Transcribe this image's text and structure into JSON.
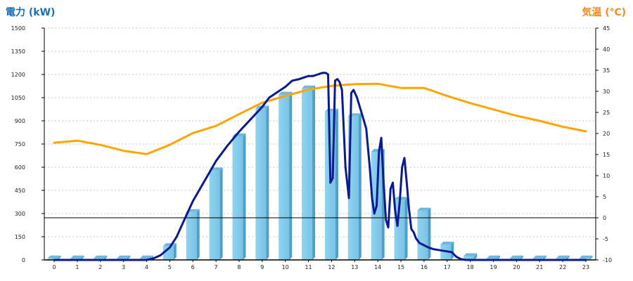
{
  "chart_data": {
    "type": "bar",
    "left_axis_title": "電力 (kW)",
    "right_axis_title": "気温 (℃)",
    "x": [
      0,
      1,
      2,
      3,
      4,
      5,
      6,
      7,
      8,
      9,
      10,
      11,
      12,
      13,
      14,
      15,
      16,
      17,
      18,
      19,
      20,
      21,
      22,
      23
    ],
    "y_left_range": [
      0,
      1500
    ],
    "y_left_ticks": [
      0,
      150,
      300,
      450,
      600,
      750,
      900,
      1050,
      1200,
      1350,
      1500
    ],
    "y_right_range": [
      -10,
      45
    ],
    "y_right_ticks": [
      -10,
      -5,
      0,
      5,
      10,
      15,
      20,
      25,
      30,
      35,
      40,
      45
    ],
    "bars": {
      "axis": "left",
      "color": "#87ceeb",
      "values": [
        10,
        10,
        10,
        10,
        10,
        90,
        310,
        580,
        800,
        980,
        1070,
        1110,
        960,
        930,
        700,
        390,
        320,
        100,
        25,
        10,
        10,
        10,
        10,
        10
      ]
    },
    "power_line": {
      "axis": "left",
      "color": "#0a1a8f",
      "x": [
        0,
        1,
        2,
        3,
        4,
        4.3,
        4.6,
        5,
        5.3,
        5.6,
        6,
        6.5,
        7,
        7.5,
        8,
        8.5,
        9,
        9.3,
        9.6,
        10,
        10.3,
        10.6,
        11,
        11.2,
        11.4,
        11.6,
        11.75,
        11.85,
        11.95,
        12.05,
        12.15,
        12.25,
        12.35,
        12.45,
        12.6,
        12.75,
        12.85,
        12.95,
        13.1,
        13.3,
        13.5,
        13.65,
        13.75,
        13.85,
        13.95,
        14.05,
        14.15,
        14.25,
        14.35,
        14.45,
        14.55,
        14.65,
        14.75,
        14.85,
        14.95,
        15.05,
        15.15,
        15.25,
        15.35,
        15.45,
        15.55,
        15.65,
        15.8,
        16,
        16.2,
        16.4,
        16.6,
        16.8,
        17,
        17.2,
        17.4,
        17.6,
        17.8,
        18,
        19,
        20,
        21,
        22,
        23
      ],
      "y": [
        0,
        0,
        0,
        0,
        0,
        10,
        30,
        80,
        150,
        250,
        380,
        510,
        640,
        740,
        830,
        910,
        990,
        1050,
        1080,
        1120,
        1160,
        1170,
        1190,
        1190,
        1200,
        1210,
        1210,
        1200,
        500,
        530,
        1160,
        1170,
        1150,
        1100,
        600,
        400,
        1080,
        1100,
        1050,
        950,
        850,
        600,
        400,
        300,
        350,
        700,
        790,
        500,
        260,
        210,
        460,
        500,
        320,
        220,
        380,
        600,
        660,
        500,
        330,
        200,
        180,
        140,
        110,
        95,
        80,
        70,
        65,
        60,
        55,
        50,
        20,
        5,
        0,
        0,
        0,
        0,
        0,
        0,
        0
      ]
    },
    "temperature_line": {
      "axis": "right",
      "color": "#ffa500",
      "x": [
        0,
        1,
        2,
        3,
        4,
        5,
        6,
        7,
        8,
        9,
        10,
        11,
        12,
        13,
        14,
        15,
        16,
        17,
        18,
        19,
        20,
        21,
        22,
        23
      ],
      "y": [
        17.8,
        18.3,
        17.3,
        15.9,
        15.1,
        17.3,
        20.1,
        21.8,
        24.6,
        27.3,
        28.9,
        30.4,
        31.3,
        31.7,
        31.8,
        30.8,
        30.8,
        28.9,
        27.2,
        25.7,
        24.2,
        23.0,
        21.6,
        20.5
      ]
    },
    "zero_reference_line": {
      "axis": "right",
      "value": 0
    },
    "grid": true,
    "legend": "none"
  }
}
